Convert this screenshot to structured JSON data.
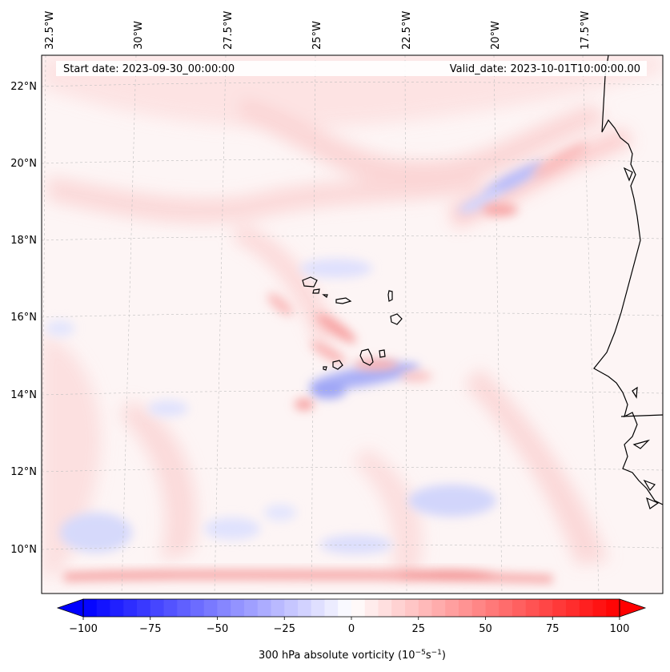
{
  "header": {
    "start_date": "Start date: 2023-09-30_00:00:00",
    "valid_date": "Valid_date: 2023-10-01T10:00:00.00"
  },
  "map": {
    "lon_labels": [
      "32.5°W",
      "30°W",
      "27.5°W",
      "25°W",
      "22.5°W",
      "20°W",
      "17.5°W"
    ],
    "lat_labels": [
      "22°N",
      "20°N",
      "18°N",
      "16°N",
      "14°N",
      "12°N",
      "10°N"
    ],
    "field": "300 hPa absolute vorticity"
  },
  "colorbar": {
    "label_prefix": "300 hPa absolute vorticity (10",
    "label_exp1": "−5",
    "label_mid": "s",
    "label_exp2": "−1",
    "label_suffix": ")",
    "ticks": [
      "−100",
      "−75",
      "−50",
      "−25",
      "0",
      "25",
      "50",
      "75",
      "100"
    ],
    "min": -100,
    "max": 100,
    "levels": 40,
    "colors": {
      "negative": "#0000ff",
      "neutral": "#ffffff",
      "positive": "#ff0000"
    }
  }
}
